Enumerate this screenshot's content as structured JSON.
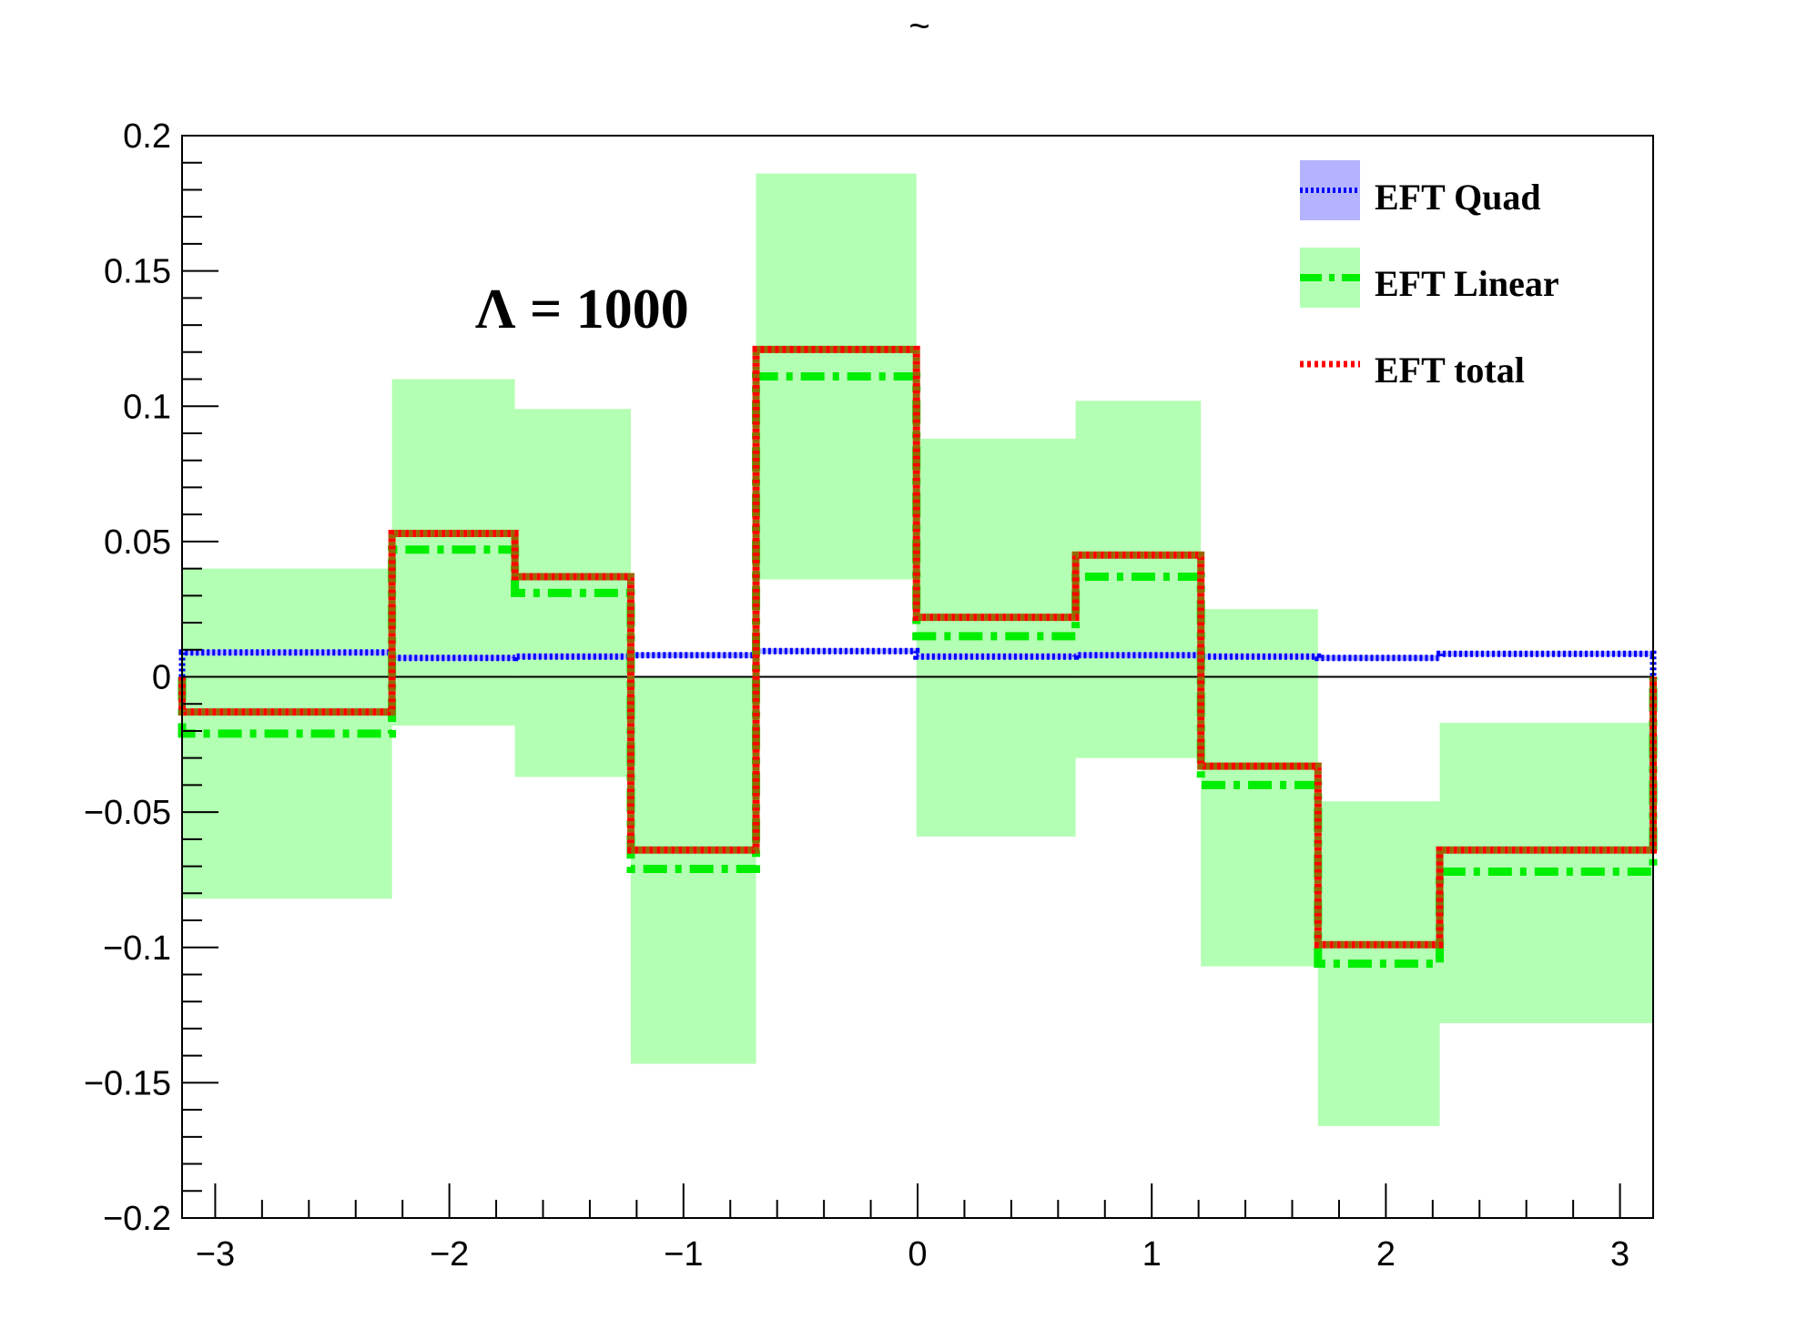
{
  "chart_data": {
    "type": "histogram-step",
    "title": "~",
    "annotation": "Λ = 1000",
    "xlim": [
      -3.1416,
      3.1416
    ],
    "ylim": [
      -0.2,
      0.2
    ],
    "x_ticks": [
      -3,
      -2,
      -1,
      0,
      1,
      2,
      3
    ],
    "x_tick_labels": [
      "−3",
      "−2",
      "−1",
      "0",
      "1",
      "2",
      "3"
    ],
    "y_ticks": [
      -0.2,
      -0.15,
      -0.1,
      -0.05,
      0,
      0.05,
      0.1,
      0.15,
      0.2
    ],
    "y_tick_labels": [
      "−0.2",
      "−0.15",
      "−0.1",
      "−0.05",
      "0",
      "0.05",
      "0.1",
      "0.15",
      "0.2"
    ],
    "bin_edges": [
      -3.1416,
      -2.245,
      -1.72,
      -1.225,
      -0.69,
      -0.005,
      0.675,
      1.21,
      1.71,
      2.23,
      3.1416
    ],
    "series": [
      {
        "name": "EFT Quad",
        "color": "#0000ff",
        "fill": "#b3b3ff",
        "values": [
          0.009,
          0.007,
          0.0075,
          0.008,
          0.0095,
          0.0075,
          0.008,
          0.0075,
          0.007,
          0.0085
        ],
        "band_low": [
          0.008,
          0.006,
          0.0065,
          0.007,
          0.0085,
          0.0065,
          0.007,
          0.0065,
          0.006,
          0.0075
        ],
        "band_high": [
          0.01,
          0.008,
          0.0085,
          0.009,
          0.0105,
          0.0085,
          0.009,
          0.0085,
          0.008,
          0.0095
        ]
      },
      {
        "name": "EFT Linear",
        "color": "#00ee00",
        "fill": "#b3ffb3",
        "values": [
          -0.021,
          0.047,
          0.031,
          -0.071,
          0.111,
          0.015,
          0.037,
          -0.04,
          -0.106,
          -0.072
        ],
        "band_low": [
          -0.082,
          -0.018,
          -0.037,
          -0.143,
          0.036,
          -0.059,
          -0.03,
          -0.107,
          -0.166,
          -0.128
        ],
        "band_high": [
          0.04,
          0.11,
          0.099,
          0.0,
          0.186,
          0.088,
          0.102,
          0.025,
          -0.046,
          -0.017
        ]
      },
      {
        "name": "EFT total",
        "color": "#ff0000",
        "values": [
          -0.013,
          0.053,
          0.037,
          -0.064,
          0.121,
          0.022,
          0.045,
          -0.033,
          -0.099,
          -0.064
        ]
      }
    ],
    "overlay_color": "#996600",
    "legend_position": "top-right",
    "grid": false
  }
}
